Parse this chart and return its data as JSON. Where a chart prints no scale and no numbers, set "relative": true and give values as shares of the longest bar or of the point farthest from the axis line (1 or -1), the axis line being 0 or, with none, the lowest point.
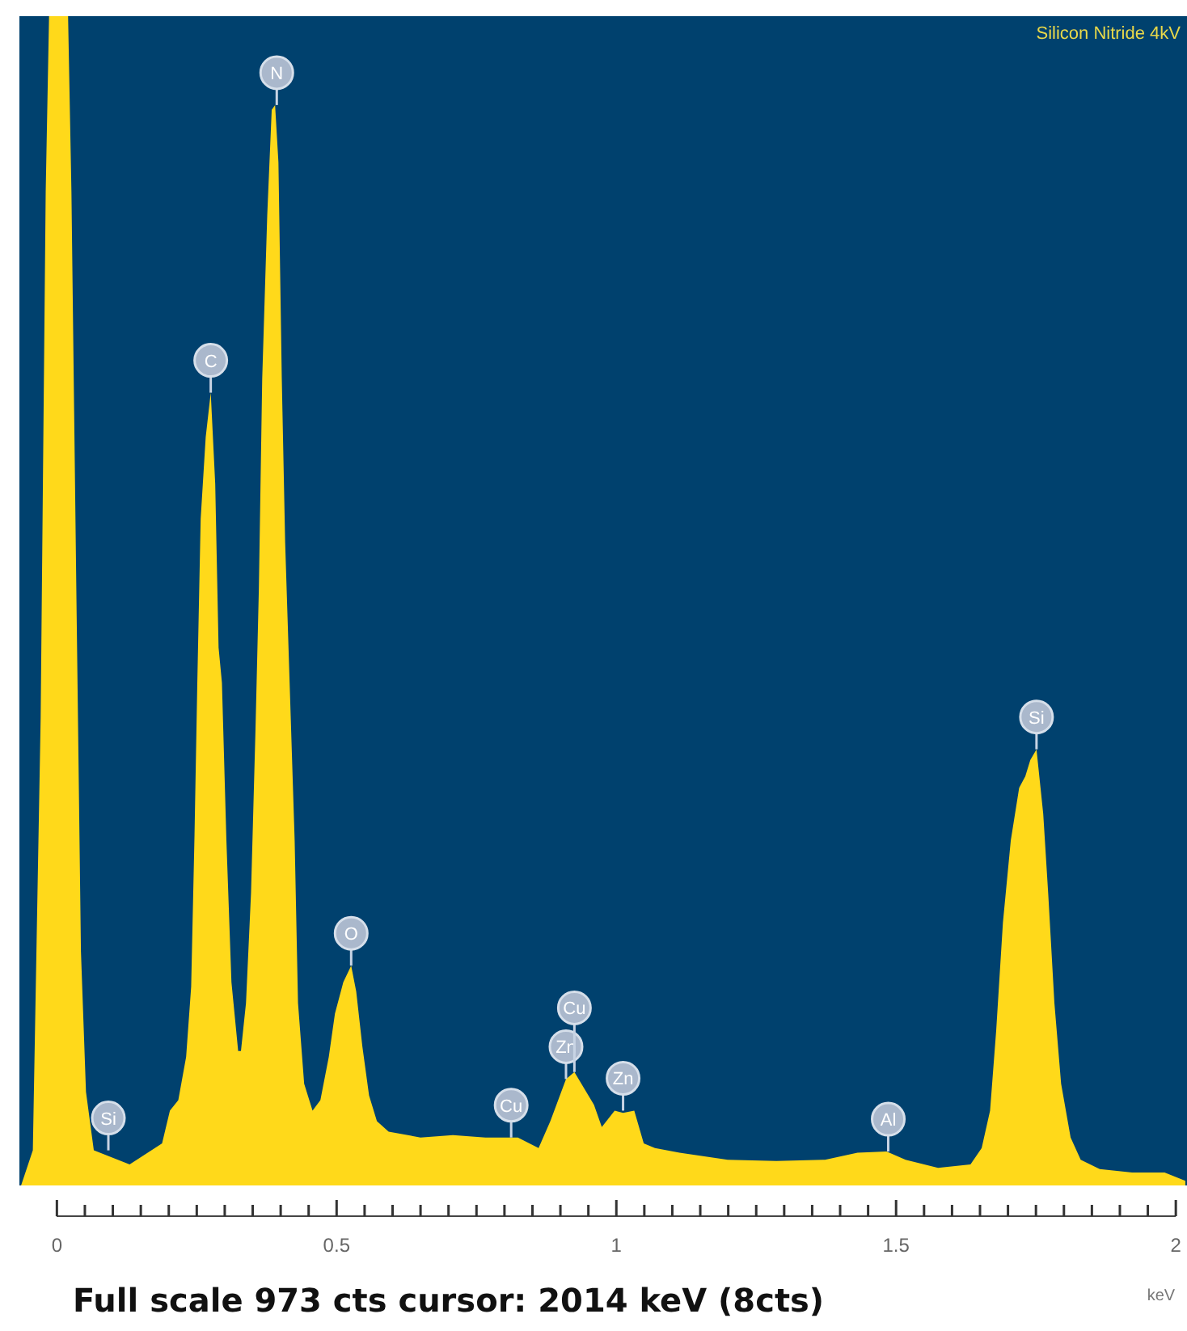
{
  "chart_data": {
    "type": "area",
    "title": "Silicon Nitride 4kV",
    "xlabel": "keV",
    "relative": true,
    "grid": false,
    "color": "#ffd91a",
    "xlim": [
      -0.067,
      2.02
    ],
    "xticks": [
      0,
      {
        "value": 0.05,
        "label": null
      },
      {
        "value": 0.1,
        "label": null
      },
      {
        "value": 0.15,
        "label": null
      },
      {
        "value": 0.2,
        "label": null
      },
      {
        "value": 0.25,
        "label": null
      },
      {
        "value": 0.3,
        "label": null
      },
      {
        "value": 0.35,
        "label": null
      },
      {
        "value": 0.4,
        "label": null
      },
      {
        "value": 0.45,
        "label": null
      },
      0.5,
      {
        "value": 0.55,
        "label": null
      },
      {
        "value": 0.6,
        "label": null
      },
      {
        "value": 0.65,
        "label": null
      },
      {
        "value": 0.7,
        "label": null
      },
      {
        "value": 0.75,
        "label": null
      },
      {
        "value": 0.8,
        "label": null
      },
      {
        "value": 0.85,
        "label": null
      },
      {
        "value": 0.9,
        "label": null
      },
      {
        "value": 0.95,
        "label": null
      },
      1,
      {
        "value": 1.05,
        "label": null
      },
      {
        "value": 1.1,
        "label": null
      },
      {
        "value": 1.15,
        "label": null
      },
      {
        "value": 1.2,
        "label": null
      },
      {
        "value": 1.25,
        "label": null
      },
      {
        "value": 1.3,
        "label": null
      },
      {
        "value": 1.35,
        "label": null
      },
      {
        "value": 1.4,
        "label": null
      },
      {
        "value": 1.45,
        "label": null
      },
      {
        "value": 1.5,
        "label": "1.5"
      },
      {
        "value": 1.55,
        "label": null
      },
      {
        "value": 1.6,
        "label": null
      },
      {
        "value": 1.65,
        "label": null
      },
      {
        "value": 1.7,
        "label": null
      },
      {
        "value": 1.75,
        "label": null
      },
      {
        "value": 1.8,
        "label": null
      },
      {
        "value": 1.85,
        "label": null
      },
      {
        "value": 1.9,
        "label": null
      },
      {
        "value": 1.95,
        "label": null
      },
      2
    ],
    "x": [
      -0.064,
      -0.043,
      -0.029,
      -0.02,
      -0.014,
      0.02,
      0.026,
      0.035,
      0.043,
      0.052,
      0.066,
      0.13,
      0.188,
      0.202,
      0.217,
      0.231,
      0.24,
      0.246,
      0.251,
      0.257,
      0.266,
      0.275,
      0.283,
      0.289,
      0.295,
      0.303,
      0.312,
      0.324,
      0.329,
      0.338,
      0.347,
      0.355,
      0.361,
      0.367,
      0.376,
      0.384,
      0.39,
      0.396,
      0.402,
      0.408,
      0.416,
      0.425,
      0.431,
      0.442,
      0.457,
      0.471,
      0.486,
      0.497,
      0.512,
      0.526,
      0.535,
      0.546,
      0.558,
      0.572,
      0.593,
      0.65,
      0.708,
      0.766,
      0.824,
      0.861,
      0.882,
      0.896,
      0.91,
      0.925,
      0.96,
      0.974,
      0.997,
      1.012,
      1.032,
      1.049,
      1.069,
      1.113,
      1.199,
      1.286,
      1.373,
      1.431,
      1.483,
      1.517,
      1.575,
      1.633,
      1.653,
      1.668,
      1.679,
      1.691,
      1.705,
      1.72,
      1.731,
      1.74,
      1.751,
      1.763,
      1.772,
      1.783,
      1.795,
      1.812,
      1.83,
      1.864,
      1.922,
      1.98,
      2.017
    ],
    "values": [
      0,
      0.03,
      0.4,
      0.85,
      1,
      1,
      0.85,
      0.5,
      0.2,
      0.08,
      0.03,
      0.018,
      0.036,
      0.064,
      0.073,
      0.11,
      0.17,
      0.3,
      0.43,
      0.57,
      0.64,
      0.678,
      0.6,
      0.46,
      0.43,
      0.295,
      0.174,
      0.115,
      0.115,
      0.156,
      0.25,
      0.39,
      0.51,
      0.69,
      0.83,
      0.92,
      0.924,
      0.875,
      0.69,
      0.55,
      0.43,
      0.295,
      0.156,
      0.087,
      0.064,
      0.073,
      0.11,
      0.147,
      0.174,
      0.188,
      0.166,
      0.119,
      0.077,
      0.055,
      0.046,
      0.041,
      0.043,
      0.041,
      0.041,
      0.032,
      0.055,
      0.073,
      0.091,
      0.097,
      0.069,
      0.05,
      0.064,
      0.062,
      0.064,
      0.036,
      0.032,
      0.028,
      0.022,
      0.021,
      0.022,
      0.028,
      0.029,
      0.022,
      0.015,
      0.018,
      0.032,
      0.064,
      0.133,
      0.225,
      0.295,
      0.34,
      0.35,
      0.364,
      0.373,
      0.318,
      0.249,
      0.156,
      0.087,
      0.041,
      0.022,
      0.014,
      0.011,
      0.011,
      0.004
    ],
    "annotations": [
      {
        "text": "Si",
        "x": 0.092,
        "y": 0.03
      },
      {
        "text": "C",
        "x": 0.275,
        "y": 0.678
      },
      {
        "text": "N",
        "x": 0.393,
        "y": 0.924
      },
      {
        "text": "O",
        "x": 0.526,
        "y": 0.188
      },
      {
        "text": "Cu",
        "x": 0.812,
        "y": 0.041
      },
      {
        "text": "Zn",
        "x": 0.91,
        "y": 0.091
      },
      {
        "text": "Cu",
        "x": 0.925,
        "y": 0.097
      },
      {
        "text": "Zn",
        "x": 1.012,
        "y": 0.064
      },
      {
        "text": "Al",
        "x": 1.486,
        "y": 0.029
      },
      {
        "text": "Si",
        "x": 1.751,
        "y": 0.373
      },
      "Full scale 973 cts cursor: 2014 keV (8cts)"
    ]
  }
}
